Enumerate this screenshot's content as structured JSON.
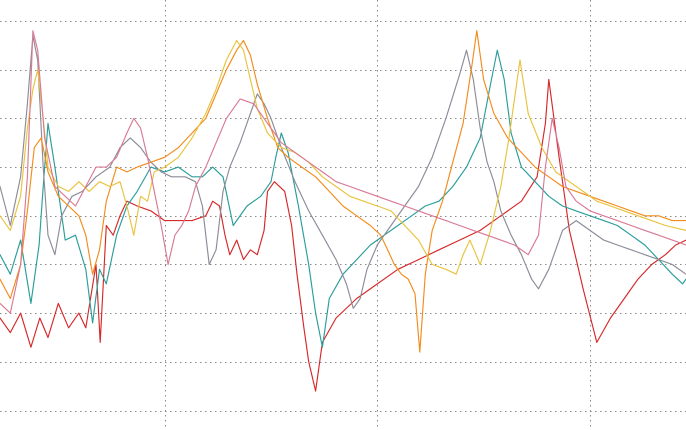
{
  "chart_data": {
    "type": "line",
    "title": "",
    "xlabel": "",
    "ylabel": "",
    "xlim": [
      0,
      100
    ],
    "ylim": [
      -44,
      40
    ],
    "grid": true,
    "grid_x": [
      24,
      55,
      86
    ],
    "grid_y": [
      -40,
      -30,
      -20,
      -10,
      0,
      10,
      20,
      30,
      40
    ],
    "legend": "none",
    "series": [
      {
        "color": "#d62728",
        "x": [
          0,
          1.5,
          3,
          4.5,
          5.8,
          7,
          8.5,
          10,
          11.5,
          12.5,
          14,
          14.6,
          15.5,
          16.5,
          17.5,
          18.5,
          20,
          22,
          24,
          26,
          28,
          30,
          31,
          32,
          32.8,
          33.5,
          34.5,
          35.5,
          36.5,
          37.5,
          38.5,
          39,
          40,
          41.5,
          42.5,
          43.3,
          44.3,
          45,
          46,
          47,
          49,
          52,
          55,
          58,
          61,
          64,
          67,
          70,
          73,
          76,
          78.3,
          79.5,
          80,
          81.5,
          83,
          85,
          87,
          89,
          91,
          93,
          95,
          97,
          98.5,
          100
        ],
        "y": [
          -21,
          -24,
          -20,
          -27,
          -21,
          -25,
          -18,
          -23,
          -20,
          -23,
          -10,
          -26,
          -2,
          -4,
          0,
          3,
          2,
          1,
          -1,
          -1,
          -1,
          0,
          3,
          2,
          -4,
          -8,
          -5,
          -9,
          -7,
          -8,
          -3,
          5,
          7,
          5,
          -2,
          -12,
          -23,
          -30,
          -36,
          -26,
          -21,
          -17,
          -14,
          -11,
          -9,
          -7,
          -5,
          -3,
          0,
          3,
          8,
          19,
          28,
          12,
          -3,
          -15,
          -26,
          -21,
          -17,
          -13,
          -10,
          -8,
          -6,
          -5
        ]
      },
      {
        "color": "#2a9d9b",
        "x": [
          0,
          1.5,
          3,
          4.5,
          5.7,
          6.3,
          7,
          8,
          9.5,
          11,
          12.5,
          13.5,
          14.5,
          15.5,
          17,
          18.5,
          20,
          22,
          24,
          26,
          28,
          29.5,
          31,
          32.5,
          34,
          36,
          38,
          39.5,
          40.2,
          41,
          42,
          43.5,
          45,
          46,
          47,
          48,
          50,
          52,
          54,
          56,
          58,
          60,
          62,
          64,
          66,
          68,
          70,
          71.5,
          72.5,
          73.5,
          74.5,
          76,
          78,
          80,
          82,
          84,
          86,
          88,
          90,
          92,
          94,
          96,
          98,
          99.5,
          100
        ],
        "y": [
          -8,
          -12,
          -5,
          -18,
          -6,
          6,
          19,
          10,
          -5,
          -4,
          -11,
          -22,
          -11,
          -14,
          -4,
          2,
          5,
          10,
          9,
          10,
          8,
          8,
          10,
          8,
          -2,
          2,
          4,
          7,
          12,
          17,
          13,
          2,
          -10,
          -20,
          -27,
          -17,
          -12,
          -9,
          -6,
          -4,
          -2,
          0,
          2,
          3,
          6,
          10,
          16,
          27,
          34,
          28,
          17,
          10,
          7,
          4,
          2,
          1,
          0,
          -1,
          -2,
          -4,
          -6,
          -9,
          -12,
          -14,
          -13
        ]
      },
      {
        "color": "#8c8c99",
        "x": [
          0,
          1.5,
          3,
          4,
          4.8,
          5.5,
          6.3,
          7,
          8,
          9,
          10.5,
          12,
          14,
          16,
          17.5,
          19,
          20.5,
          22,
          23.5,
          25,
          27,
          28.5,
          29.5,
          30.5,
          31.5,
          32.5,
          33.5,
          35,
          36.5,
          37.5,
          38.5,
          39.5,
          41,
          43,
          45,
          47,
          49,
          50.5,
          51.5,
          52.5,
          53.5,
          55,
          57,
          59,
          61,
          63,
          65,
          67,
          68,
          69,
          70,
          71,
          72,
          73,
          74.5,
          76,
          77.5,
          78.5,
          80,
          82,
          84,
          86,
          88,
          90,
          92,
          94,
          96,
          98,
          100
        ],
        "y": [
          6,
          -2,
          8,
          23,
          37,
          32,
          10,
          -4,
          -8,
          0,
          4,
          5,
          8,
          10,
          14,
          16,
          14,
          11,
          9,
          8,
          8,
          7,
          2,
          -10,
          -7,
          5,
          10,
          15,
          21,
          25,
          23,
          20,
          14,
          7,
          1,
          -4,
          -9,
          -14,
          -19,
          -17,
          -11,
          -6,
          -2,
          2,
          6,
          12,
          20,
          29,
          34,
          28,
          18,
          11,
          7,
          1,
          -4,
          -8,
          -13,
          -15,
          -11,
          -3,
          -1,
          -3,
          -5,
          -6,
          -7,
          -8,
          -9,
          -10,
          -12
        ]
      },
      {
        "color": "#f28c1c",
        "x": [
          0,
          1.5,
          3,
          4,
          5,
          6,
          7,
          8.5,
          10,
          11.5,
          12.5,
          13.5,
          14.5,
          15.5,
          17,
          18.5,
          20,
          22,
          24,
          26,
          28,
          30,
          31.5,
          33,
          34.5,
          35.5,
          36.5,
          37.5,
          39,
          40.5,
          42,
          44,
          46,
          48,
          50,
          52,
          54,
          55.5,
          56.5,
          57.5,
          58.5,
          59.5,
          60.5,
          61.2,
          62,
          63,
          64.5,
          66,
          67.5,
          68.8,
          69.5,
          70.5,
          72,
          74,
          76,
          78,
          80,
          82,
          84,
          86,
          88,
          90,
          92,
          94,
          96,
          98,
          100
        ],
        "y": [
          -13,
          -17,
          -10,
          1,
          14,
          16,
          9,
          4,
          2,
          0,
          -4,
          -12,
          -7,
          3,
          10,
          9,
          10,
          11,
          12,
          14,
          17,
          20,
          25,
          30,
          34,
          36,
          33,
          27,
          20,
          14,
          12,
          10,
          8,
          5,
          2,
          0,
          -2,
          -4,
          -7,
          -10,
          -12,
          -13,
          -16,
          -28,
          -12,
          -3,
          3,
          11,
          19,
          31,
          38,
          28,
          21,
          16,
          13,
          10,
          8,
          6,
          5,
          4,
          3,
          2,
          1,
          0,
          0,
          -1,
          -1
        ]
      },
      {
        "color": "#e8c33d",
        "x": [
          0,
          1.5,
          3,
          4,
          4.8,
          5.5,
          6.3,
          7,
          8.5,
          10,
          11.5,
          13,
          14.5,
          16,
          17.5,
          18.5,
          19.5,
          20.5,
          21.5,
          22.5,
          24,
          26,
          28,
          30,
          31.5,
          33,
          34.5,
          35.5,
          36.5,
          37.5,
          39,
          41,
          43,
          45,
          47,
          49,
          51,
          53,
          55,
          57,
          59,
          61,
          63,
          65,
          66.5,
          67.5,
          68.5,
          70,
          71.5,
          73,
          74.2,
          75,
          75.8,
          77,
          79,
          81,
          83,
          85,
          87,
          89,
          91,
          93,
          95,
          97,
          100
        ],
        "y": [
          0,
          -3,
          4,
          18,
          26,
          30,
          20,
          10,
          6,
          5,
          7,
          5,
          7,
          6,
          7,
          2,
          -4,
          4,
          3,
          9,
          10,
          12,
          16,
          21,
          26,
          32,
          36,
          34,
          28,
          22,
          17,
          14,
          13,
          11,
          8,
          6,
          4,
          3,
          2,
          1,
          -2,
          -5,
          -10,
          -11,
          -12,
          -8,
          -5,
          -10,
          -3,
          6,
          16,
          24,
          32,
          21,
          14,
          9,
          7,
          5,
          3,
          2,
          1,
          0,
          -1,
          -2,
          -3
        ]
      },
      {
        "color": "#d97a95",
        "x": [
          0,
          1.5,
          3,
          4,
          4.8,
          5.5,
          6.5,
          8,
          9.5,
          11,
          12.5,
          14,
          15.5,
          17,
          18.5,
          19.5,
          20.5,
          21.5,
          22.5,
          23.5,
          24.5,
          25.5,
          26.5,
          27.5,
          28.5,
          30,
          31.5,
          33,
          35,
          37,
          39,
          41,
          43,
          45,
          47,
          49,
          51,
          53,
          55,
          57,
          59,
          61,
          63,
          65,
          67,
          69,
          71,
          73,
          75,
          77,
          78.5,
          79.5,
          80.5,
          81.5,
          82.5,
          84,
          86,
          88,
          90,
          92,
          94,
          96,
          98,
          100
        ],
        "y": [
          -18,
          -20,
          -10,
          8,
          38,
          34,
          16,
          6,
          4,
          2,
          6,
          10,
          10,
          12,
          17,
          20,
          18,
          12,
          5,
          -2,
          -10,
          -4,
          -2,
          1,
          6,
          10,
          15,
          20,
          24,
          23,
          19,
          15,
          13,
          11,
          9,
          7,
          6,
          5,
          4,
          3,
          2,
          1,
          0,
          -1,
          -2,
          -3,
          -4,
          -5,
          -6,
          -8,
          -4,
          10,
          20,
          14,
          6,
          3,
          1,
          0,
          -1,
          -2,
          -3,
          -4,
          -5,
          -6
        ]
      }
    ]
  }
}
